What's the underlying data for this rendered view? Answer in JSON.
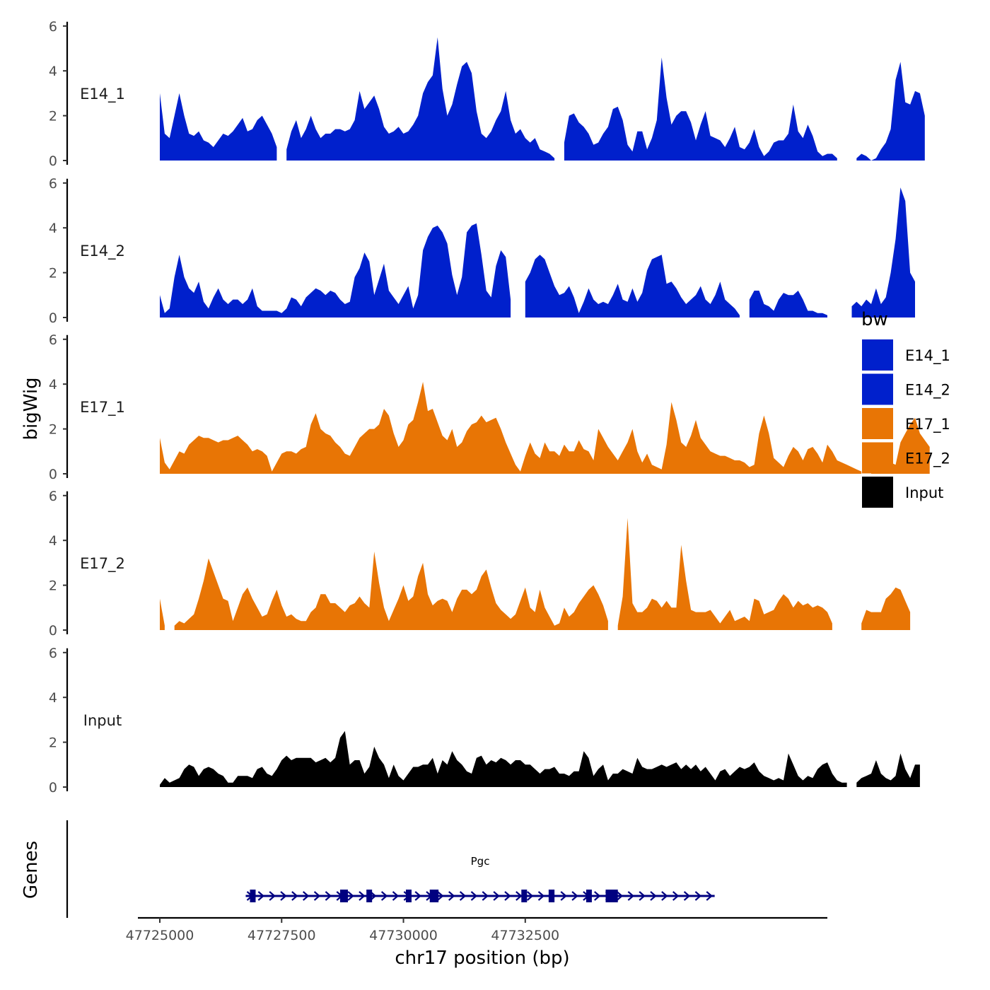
{
  "chart_data": {
    "type": "area",
    "xlabel": "chr17 position (bp)",
    "ylabel": "bigWig",
    "gene_track_label": "Genes",
    "xlim": [
      47724550,
      47738700
    ],
    "ylim": [
      0,
      6
    ],
    "x_ticks": [
      47725000,
      47727500,
      47730000,
      47732500
    ],
    "x_tick_labels": [
      "47725000",
      "47727500",
      "47730000",
      "47732500"
    ],
    "y_ticks": [
      0,
      2,
      4,
      6
    ],
    "y_tick_labels": [
      "0",
      "2",
      "4",
      "6"
    ],
    "legend": {
      "title": "bw",
      "position": "right",
      "entries": [
        {
          "label": "E14_1",
          "color": "#0020CC"
        },
        {
          "label": "E14_2",
          "color": "#0020CC"
        },
        {
          "label": "E17_1",
          "color": "#E87505"
        },
        {
          "label": "E17_2",
          "color": "#E87505"
        },
        {
          "label": "Input",
          "color": "#000000"
        }
      ]
    },
    "x_start": 47725000,
    "x_step": 100,
    "series": [
      {
        "name": "E14_1",
        "color": "#0020CC",
        "values": [
          3.0,
          1.2,
          1.0,
          2.0,
          3.0,
          2.0,
          1.2,
          1.1,
          1.3,
          0.9,
          0.8,
          0.6,
          0.9,
          1.2,
          1.1,
          1.3,
          1.6,
          1.9,
          1.3,
          1.4,
          1.8,
          2.0,
          1.6,
          1.2,
          0.6,
          null,
          0.5,
          1.3,
          1.8,
          1.0,
          1.4,
          2.0,
          1.4,
          1.0,
          1.2,
          1.2,
          1.4,
          1.4,
          1.3,
          1.4,
          1.8,
          3.1,
          2.3,
          2.6,
          2.9,
          2.3,
          1.5,
          1.2,
          1.3,
          1.5,
          1.2,
          1.3,
          1.6,
          2.0,
          3.0,
          3.5,
          3.8,
          5.5,
          3.2,
          2.0,
          2.5,
          3.4,
          4.2,
          4.4,
          3.9,
          2.2,
          1.2,
          1.0,
          1.3,
          1.8,
          2.2,
          3.1,
          1.8,
          1.2,
          1.4,
          1.0,
          0.8,
          1.0,
          0.5,
          0.4,
          0.3,
          0.1,
          null,
          0.8,
          2.0,
          2.1,
          1.7,
          1.5,
          1.2,
          0.7,
          0.8,
          1.2,
          1.5,
          2.3,
          2.4,
          1.8,
          0.7,
          0.4,
          1.3,
          1.3,
          0.5,
          1.0,
          1.8,
          4.6,
          2.8,
          1.6,
          2.0,
          2.2,
          2.2,
          1.7,
          0.9,
          1.6,
          2.2,
          1.1,
          1.0,
          0.9,
          0.6,
          1.0,
          1.5,
          0.6,
          0.5,
          0.8,
          1.4,
          0.6,
          0.2,
          0.4,
          0.8,
          0.9,
          0.9,
          1.2,
          2.5,
          1.3,
          1.0,
          1.6,
          1.1,
          0.4,
          0.2,
          0.3,
          0.3,
          0.1,
          null,
          null,
          null,
          0.1,
          0.3,
          0.2,
          0.0,
          0.1,
          0.5,
          0.8,
          1.4,
          3.6,
          4.4,
          2.6,
          2.5,
          3.1,
          3.0,
          2.0
        ]
      },
      {
        "name": "E14_2",
        "color": "#0020CC",
        "values": [
          1.0,
          0.2,
          0.4,
          1.8,
          2.8,
          1.8,
          1.3,
          1.1,
          1.6,
          0.7,
          0.4,
          0.9,
          1.3,
          0.8,
          0.6,
          0.8,
          0.8,
          0.6,
          0.8,
          1.3,
          0.5,
          0.3,
          0.3,
          0.3,
          0.3,
          0.2,
          0.4,
          0.9,
          0.8,
          0.5,
          0.9,
          1.1,
          1.3,
          1.2,
          1.0,
          1.2,
          1.1,
          0.8,
          0.6,
          0.7,
          1.8,
          2.2,
          2.9,
          2.5,
          1.0,
          1.7,
          2.4,
          1.2,
          0.9,
          0.6,
          1.0,
          1.4,
          0.4,
          1.0,
          3.0,
          3.6,
          4.0,
          4.1,
          3.8,
          3.3,
          1.9,
          1.0,
          1.8,
          3.8,
          4.1,
          4.2,
          2.8,
          1.2,
          0.9,
          2.3,
          3.0,
          2.7,
          0.8,
          null,
          null,
          1.6,
          2.0,
          2.6,
          2.8,
          2.6,
          2.0,
          1.4,
          1.0,
          1.1,
          1.4,
          0.9,
          0.2,
          0.7,
          1.3,
          0.8,
          0.6,
          0.7,
          0.6,
          1.0,
          1.5,
          0.8,
          0.7,
          1.3,
          0.7,
          1.1,
          2.1,
          2.6,
          2.7,
          2.8,
          1.5,
          1.6,
          1.3,
          0.9,
          0.6,
          0.8,
          1.0,
          1.4,
          0.8,
          0.6,
          1.0,
          1.6,
          0.8,
          0.6,
          0.4,
          0.1,
          null,
          0.8,
          1.2,
          1.2,
          0.6,
          0.5,
          0.3,
          0.8,
          1.1,
          1.0,
          1.0,
          1.2,
          0.8,
          0.3,
          0.3,
          0.2,
          0.2,
          0.1,
          null,
          null,
          null,
          null,
          0.5,
          0.7,
          0.5,
          0.8,
          0.6,
          1.3,
          0.6,
          0.9,
          2.0,
          3.5,
          5.8,
          5.2,
          2.0,
          1.6
        ]
      },
      {
        "name": "E17_1",
        "color": "#E87505",
        "values": [
          1.6,
          0.5,
          0.2,
          0.6,
          1.0,
          0.9,
          1.3,
          1.5,
          1.7,
          1.6,
          1.6,
          1.5,
          1.4,
          1.5,
          1.5,
          1.6,
          1.7,
          1.5,
          1.3,
          1.0,
          1.1,
          1.0,
          0.8,
          0.1,
          0.5,
          0.9,
          1.0,
          1.0,
          0.9,
          1.1,
          1.2,
          2.2,
          2.7,
          2.0,
          1.8,
          1.7,
          1.4,
          1.2,
          0.9,
          0.8,
          1.2,
          1.6,
          1.8,
          2.0,
          2.0,
          2.2,
          2.9,
          2.6,
          1.8,
          1.2,
          1.5,
          2.2,
          2.4,
          3.2,
          4.1,
          2.8,
          2.9,
          2.3,
          1.7,
          1.5,
          2.0,
          1.2,
          1.4,
          1.9,
          2.2,
          2.3,
          2.6,
          2.3,
          2.4,
          2.5,
          2.0,
          1.4,
          0.9,
          0.4,
          0.1,
          0.8,
          1.4,
          0.9,
          0.7,
          1.4,
          1.0,
          1.0,
          0.8,
          1.3,
          1.0,
          1.0,
          1.5,
          1.1,
          1.0,
          0.6,
          2.0,
          1.6,
          1.2,
          0.9,
          0.6,
          1.0,
          1.4,
          2.0,
          1.0,
          0.5,
          0.9,
          0.4,
          0.3,
          0.2,
          1.3,
          3.2,
          2.4,
          1.4,
          1.2,
          1.7,
          2.4,
          1.6,
          1.3,
          1.0,
          0.9,
          0.8,
          0.8,
          0.7,
          0.6,
          0.6,
          0.5,
          0.3,
          0.4,
          1.8,
          2.6,
          1.8,
          0.7,
          0.5,
          0.3,
          0.8,
          1.2,
          1.0,
          0.6,
          1.1,
          1.2,
          0.9,
          0.5,
          1.3,
          1.0,
          0.6,
          0.5,
          0.4,
          0.3,
          0.2,
          0.1,
          null,
          0.3,
          0.2,
          0.4,
          0.6,
          0.5,
          0.4,
          1.4,
          1.8,
          2.2,
          2.5,
          1.8,
          1.5,
          1.2
        ]
      },
      {
        "name": "E17_2",
        "color": "#E87505",
        "values": [
          1.4,
          0.2,
          null,
          0.2,
          0.4,
          0.3,
          0.5,
          0.7,
          1.4,
          2.2,
          3.2,
          2.6,
          2.0,
          1.4,
          1.3,
          0.4,
          1.0,
          1.6,
          1.9,
          1.4,
          1.0,
          0.6,
          0.7,
          1.3,
          1.8,
          1.1,
          0.6,
          0.7,
          0.5,
          0.4,
          0.4,
          0.8,
          1.0,
          1.6,
          1.6,
          1.2,
          1.2,
          1.0,
          0.8,
          1.1,
          1.2,
          1.5,
          1.2,
          1.0,
          3.5,
          2.1,
          1.0,
          0.4,
          0.9,
          1.4,
          2.0,
          1.3,
          1.5,
          2.4,
          3.0,
          1.6,
          1.1,
          1.3,
          1.4,
          1.3,
          0.8,
          1.4,
          1.8,
          1.8,
          1.6,
          1.8,
          2.4,
          2.7,
          1.9,
          1.2,
          0.9,
          0.7,
          0.5,
          0.7,
          1.3,
          1.9,
          1.0,
          0.8,
          1.8,
          1.0,
          0.6,
          0.2,
          0.3,
          1.0,
          0.6,
          0.8,
          1.2,
          1.5,
          1.8,
          2.0,
          1.6,
          1.1,
          0.4,
          null,
          0.2,
          1.5,
          5.0,
          1.2,
          0.8,
          0.8,
          1.0,
          1.4,
          1.3,
          1.0,
          1.3,
          1.0,
          1.0,
          3.8,
          2.2,
          0.9,
          0.8,
          0.8,
          0.8,
          0.9,
          0.6,
          0.3,
          0.6,
          0.9,
          0.4,
          0.5,
          0.6,
          0.4,
          1.4,
          1.3,
          0.7,
          0.8,
          0.9,
          1.3,
          1.6,
          1.4,
          1.0,
          1.3,
          1.1,
          1.2,
          1.0,
          1.1,
          1.0,
          0.8,
          0.3,
          null,
          null,
          null,
          null,
          null,
          0.3,
          0.9,
          0.8,
          0.8,
          0.8,
          1.4,
          1.6,
          1.9,
          1.8,
          1.3,
          0.8
        ]
      },
      {
        "name": "Input",
        "color": "#000000",
        "values": [
          0.1,
          0.4,
          0.2,
          0.3,
          0.4,
          0.8,
          1.0,
          0.9,
          0.5,
          0.8,
          0.9,
          0.8,
          0.6,
          0.5,
          0.2,
          0.2,
          0.5,
          0.5,
          0.5,
          0.4,
          0.8,
          0.9,
          0.6,
          0.5,
          0.8,
          1.2,
          1.4,
          1.2,
          1.3,
          1.3,
          1.3,
          1.3,
          1.1,
          1.2,
          1.3,
          1.1,
          1.3,
          2.2,
          2.5,
          1.0,
          1.2,
          1.2,
          0.6,
          0.9,
          1.8,
          1.3,
          1.0,
          0.4,
          1.0,
          0.5,
          0.3,
          0.6,
          0.9,
          0.9,
          1.0,
          1.0,
          1.3,
          0.6,
          1.2,
          1.0,
          1.6,
          1.2,
          1.0,
          0.7,
          0.6,
          1.3,
          1.4,
          1.0,
          1.2,
          1.1,
          1.3,
          1.2,
          1.0,
          1.2,
          1.2,
          1.0,
          1.0,
          0.8,
          0.6,
          0.8,
          0.8,
          0.9,
          0.6,
          0.6,
          0.5,
          0.7,
          0.7,
          1.6,
          1.3,
          0.5,
          0.8,
          1.0,
          0.3,
          0.6,
          0.6,
          0.8,
          0.7,
          0.6,
          1.3,
          0.9,
          0.8,
          0.8,
          0.9,
          1.0,
          0.9,
          1.0,
          1.1,
          0.8,
          1.0,
          0.8,
          1.0,
          0.7,
          0.9,
          0.6,
          0.3,
          0.7,
          0.8,
          0.5,
          0.7,
          0.9,
          0.8,
          0.9,
          1.1,
          0.7,
          0.5,
          0.4,
          0.3,
          0.4,
          0.3,
          1.5,
          1.0,
          0.5,
          0.3,
          0.5,
          0.4,
          0.8,
          1.0,
          1.1,
          0.6,
          0.3,
          0.2,
          0.2,
          null,
          0.2,
          0.4,
          0.5,
          0.6,
          1.2,
          0.6,
          0.4,
          0.3,
          0.5,
          1.5,
          0.8,
          0.4,
          1.0,
          1.0
        ]
      }
    ],
    "gene": {
      "name": "Pgc",
      "color": "#000080",
      "strand": "+",
      "start": 47726850,
      "end": 47736300,
      "exons": [
        [
          47726850,
          47726950
        ],
        [
          47728700,
          47728860
        ],
        [
          47729240,
          47729320
        ],
        [
          47730050,
          47730150
        ],
        [
          47730540,
          47730720
        ],
        [
          47732420,
          47732510
        ],
        [
          47732980,
          47733100
        ],
        [
          47733750,
          47733820
        ],
        [
          47734150,
          47734400
        ]
      ]
    }
  }
}
